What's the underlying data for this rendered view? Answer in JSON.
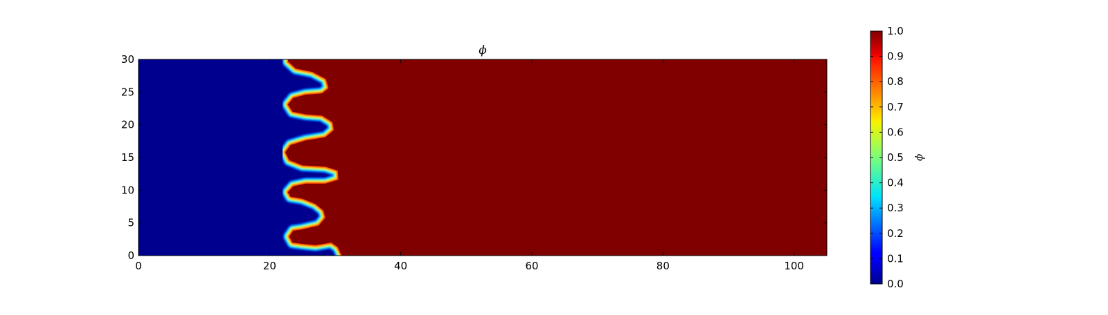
{
  "chart_data": {
    "type": "heatmap",
    "title": "ϕ",
    "xlabel": "",
    "ylabel": "",
    "xlim": [
      0,
      105
    ],
    "ylim": [
      0,
      30
    ],
    "x_ticks": [
      0,
      20,
      40,
      60,
      80,
      100
    ],
    "y_ticks": [
      0,
      5,
      10,
      15,
      20,
      25,
      30
    ],
    "colormap": "jet",
    "background_colors": {
      "low": "#00008f",
      "high": "#800000"
    },
    "grid": false,
    "colorbar": {
      "label": "ϕ",
      "range": [
        0.0,
        1.0
      ],
      "ticks": [
        "0.0",
        "0.1",
        "0.2",
        "0.3",
        "0.4",
        "0.5",
        "0.6",
        "0.7",
        "0.8",
        "0.9",
        "1.0"
      ]
    },
    "interface_phi": 0.5,
    "interface_curve": {
      "x": [
        31.0,
        30.4,
        29.4,
        27.0,
        25.0,
        23.5,
        23.0,
        23.6,
        25.0,
        27.5,
        28.5,
        28.2,
        27.0,
        25.0,
        23.2,
        22.8,
        23.6,
        25.5,
        28.5,
        30.5,
        30.4,
        28.5,
        25.0,
        23.0,
        22.4,
        23.2,
        25.5,
        28.5,
        29.8,
        29.6,
        28.0,
        25.5,
        23.5,
        22.8,
        23.6,
        25.5,
        28.0,
        29.0,
        28.6,
        26.5,
        24.0,
        22.8
      ],
      "y": [
        0.0,
        1.3,
        2.0,
        1.6,
        1.8,
        2.0,
        2.9,
        3.8,
        4.0,
        4.6,
        5.8,
        6.9,
        7.9,
        8.7,
        9.0,
        9.7,
        10.6,
        11.0,
        11.0,
        11.6,
        13.0,
        13.6,
        13.8,
        14.6,
        15.8,
        16.9,
        17.6,
        18.1,
        19.2,
        20.4,
        21.4,
        21.6,
        22.0,
        23.1,
        24.1,
        24.6,
        24.8,
        25.6,
        27.0,
        28.1,
        28.6,
        29.7
      ]
    }
  }
}
